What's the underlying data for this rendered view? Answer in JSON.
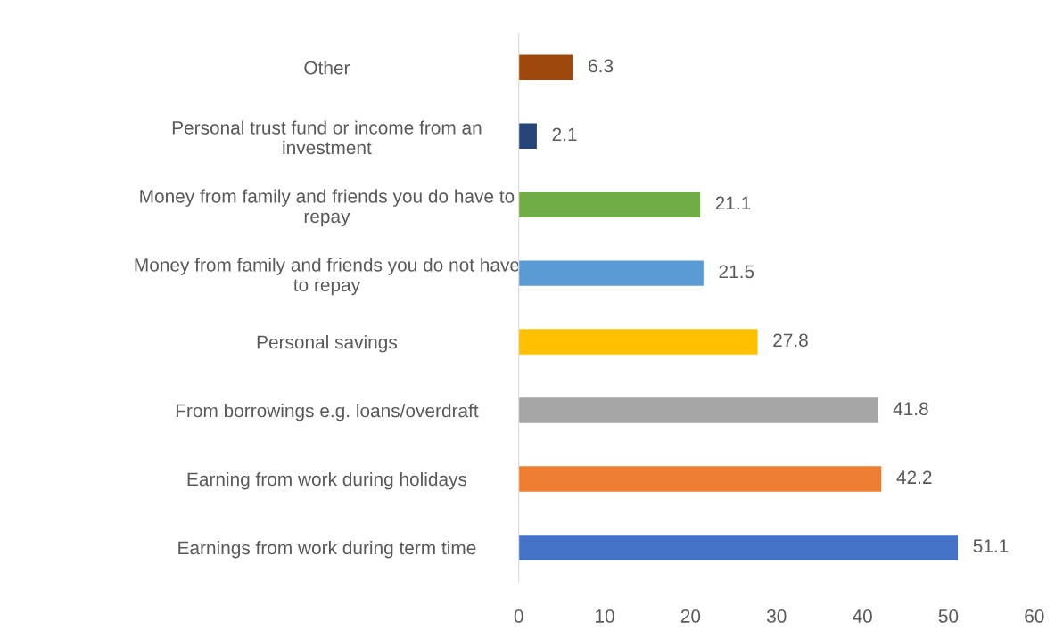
{
  "chart_data": {
    "type": "bar",
    "orientation": "horizontal",
    "categories": [
      "Other",
      "Personal trust fund or income from an\ninvestment",
      "Money from family and friends you do have to\nrepay",
      "Money from family and friends you do not have\nto repay",
      "Personal savings",
      "From borrowings e.g. loans/overdraft",
      "Earning from work during holidays",
      "Earnings from work during term time"
    ],
    "values": [
      6.3,
      2.1,
      21.1,
      21.5,
      27.8,
      41.8,
      42.2,
      51.1
    ],
    "colors": [
      "#9e480e",
      "#264478",
      "#70ad47",
      "#5b9bd5",
      "#ffc000",
      "#a5a5a5",
      "#ed7d31",
      "#4472c4"
    ],
    "xlim": [
      0,
      60
    ],
    "xticks": [
      0,
      10,
      20,
      30,
      40,
      50,
      60
    ],
    "data_labels": true,
    "grid": false,
    "legend": false
  }
}
